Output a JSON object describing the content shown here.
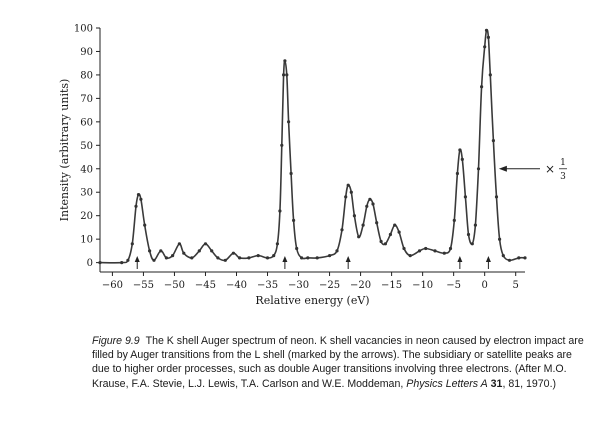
{
  "chart_data": {
    "type": "line",
    "xlabel": "Relative energy (eV)",
    "ylabel": "Intensity (arbitrary units)",
    "xlim": [
      -62,
      6.5
    ],
    "ylim": [
      -4,
      100
    ],
    "x_ticks": [
      -60,
      -55,
      -50,
      -45,
      -40,
      -35,
      -30,
      -25,
      -20,
      -15,
      -10,
      -5,
      0,
      5
    ],
    "y_ticks": [
      0,
      10,
      20,
      30,
      40,
      50,
      60,
      70,
      80,
      90,
      100
    ],
    "grid": false,
    "arrow_positions_eV": [
      -56,
      -32.2,
      -22,
      -4,
      0.6
    ],
    "scale_annotation": {
      "prefix": "×",
      "numerator": "1",
      "denominator": "3",
      "points_to_peak_at_eV": 1
    },
    "peaks": [
      {
        "x": -62,
        "y": 0
      },
      {
        "x": -58.5,
        "y": 0
      },
      {
        "x": -57.5,
        "y": 1
      },
      {
        "x": -56.8,
        "y": 8
      },
      {
        "x": -56.2,
        "y": 24
      },
      {
        "x": -55.8,
        "y": 29
      },
      {
        "x": -55.4,
        "y": 27
      },
      {
        "x": -54.8,
        "y": 16
      },
      {
        "x": -54.0,
        "y": 5
      },
      {
        "x": -53.3,
        "y": 1
      },
      {
        "x": -52.2,
        "y": 5
      },
      {
        "x": -51.3,
        "y": 2
      },
      {
        "x": -50.3,
        "y": 3
      },
      {
        "x": -49.2,
        "y": 8
      },
      {
        "x": -48.5,
        "y": 4
      },
      {
        "x": -47.2,
        "y": 2
      },
      {
        "x": -46.0,
        "y": 5
      },
      {
        "x": -45.0,
        "y": 8
      },
      {
        "x": -44.0,
        "y": 5
      },
      {
        "x": -43.0,
        "y": 2
      },
      {
        "x": -41.8,
        "y": 1
      },
      {
        "x": -40.5,
        "y": 4
      },
      {
        "x": -39.5,
        "y": 2
      },
      {
        "x": -38.0,
        "y": 2
      },
      {
        "x": -36.5,
        "y": 3
      },
      {
        "x": -35.0,
        "y": 2
      },
      {
        "x": -34.0,
        "y": 3
      },
      {
        "x": -33.4,
        "y": 8
      },
      {
        "x": -33.0,
        "y": 22
      },
      {
        "x": -32.7,
        "y": 50
      },
      {
        "x": -32.4,
        "y": 80
      },
      {
        "x": -32.2,
        "y": 86
      },
      {
        "x": -31.9,
        "y": 80
      },
      {
        "x": -31.6,
        "y": 60
      },
      {
        "x": -31.2,
        "y": 38
      },
      {
        "x": -30.8,
        "y": 18
      },
      {
        "x": -30.3,
        "y": 6
      },
      {
        "x": -29.5,
        "y": 2
      },
      {
        "x": -28.5,
        "y": 2
      },
      {
        "x": -27.0,
        "y": 2
      },
      {
        "x": -25.0,
        "y": 3
      },
      {
        "x": -23.8,
        "y": 5
      },
      {
        "x": -23.0,
        "y": 14
      },
      {
        "x": -22.4,
        "y": 28
      },
      {
        "x": -22.0,
        "y": 33
      },
      {
        "x": -21.5,
        "y": 30
      },
      {
        "x": -21.0,
        "y": 20
      },
      {
        "x": -20.3,
        "y": 11
      },
      {
        "x": -19.6,
        "y": 16
      },
      {
        "x": -19.0,
        "y": 24
      },
      {
        "x": -18.5,
        "y": 27
      },
      {
        "x": -18.0,
        "y": 25
      },
      {
        "x": -17.4,
        "y": 17
      },
      {
        "x": -16.7,
        "y": 9
      },
      {
        "x": -16.0,
        "y": 8
      },
      {
        "x": -15.2,
        "y": 12
      },
      {
        "x": -14.5,
        "y": 16
      },
      {
        "x": -13.8,
        "y": 13
      },
      {
        "x": -13.0,
        "y": 6
      },
      {
        "x": -12.0,
        "y": 3
      },
      {
        "x": -10.5,
        "y": 5
      },
      {
        "x": -9.5,
        "y": 6
      },
      {
        "x": -8.0,
        "y": 5
      },
      {
        "x": -6.5,
        "y": 4
      },
      {
        "x": -5.5,
        "y": 6
      },
      {
        "x": -4.9,
        "y": 18
      },
      {
        "x": -4.4,
        "y": 38
      },
      {
        "x": -4.0,
        "y": 48
      },
      {
        "x": -3.6,
        "y": 44
      },
      {
        "x": -3.1,
        "y": 28
      },
      {
        "x": -2.6,
        "y": 12
      },
      {
        "x": -2.0,
        "y": 8
      },
      {
        "x": -1.5,
        "y": 16
      },
      {
        "x": -1.0,
        "y": 40
      },
      {
        "x": -0.5,
        "y": 75
      },
      {
        "x": 0.0,
        "y": 92
      },
      {
        "x": 0.3,
        "y": 99
      },
      {
        "x": 0.6,
        "y": 96
      },
      {
        "x": 0.9,
        "y": 80
      },
      {
        "x": 1.4,
        "y": 52
      },
      {
        "x": 1.9,
        "y": 28
      },
      {
        "x": 2.4,
        "y": 10
      },
      {
        "x": 3.0,
        "y": 3
      },
      {
        "x": 4.0,
        "y": 1
      },
      {
        "x": 5.5,
        "y": 2
      },
      {
        "x": 6.5,
        "y": 2
      }
    ]
  },
  "caption": {
    "label": "Figure 9.9",
    "text": "The K shell Auger spectrum of neon. K shell vacancies in neon caused by electron impact are filled by Auger transitions from the L shell (marked by the arrows). The subsidiary or satellite peaks are due to higher order processes, such as double Auger transitions involving three electrons. (After M.O. Krause, F.A. Stevie, L.J. Lewis, T.A. Carlson and W.E. Moddeman,",
    "journal": "Physics Letters A",
    "volume": "31",
    "rest": ", 81, 1970.)"
  }
}
